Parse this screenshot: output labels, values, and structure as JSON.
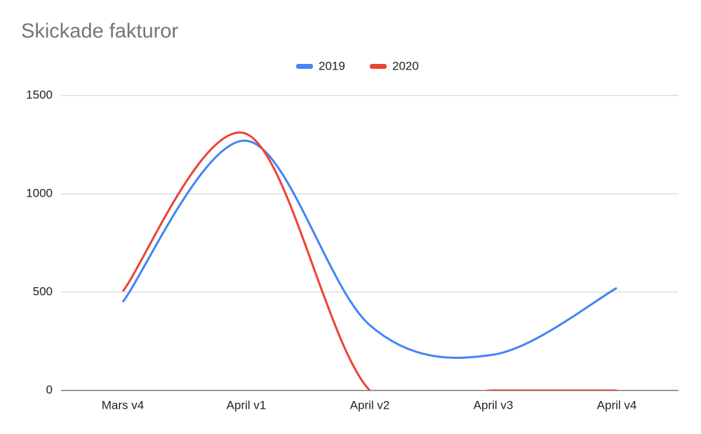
{
  "chart_data": {
    "type": "line",
    "title": "Skickade fakturor",
    "categories": [
      "Mars v4",
      "April v1",
      "April v2",
      "April v3",
      "April v4"
    ],
    "series": [
      {
        "name": "2019",
        "color": "#4285f4",
        "values": [
          450,
          1270,
          332,
          182,
          521
        ]
      },
      {
        "name": "2020",
        "color": "#ea4335",
        "values": [
          504,
          1305,
          0,
          0,
          0
        ]
      }
    ],
    "ylim": [
      0,
      1500
    ],
    "yticks": [
      0,
      500,
      1000,
      1500
    ],
    "grid": true,
    "smooth": true,
    "legend": "top"
  }
}
